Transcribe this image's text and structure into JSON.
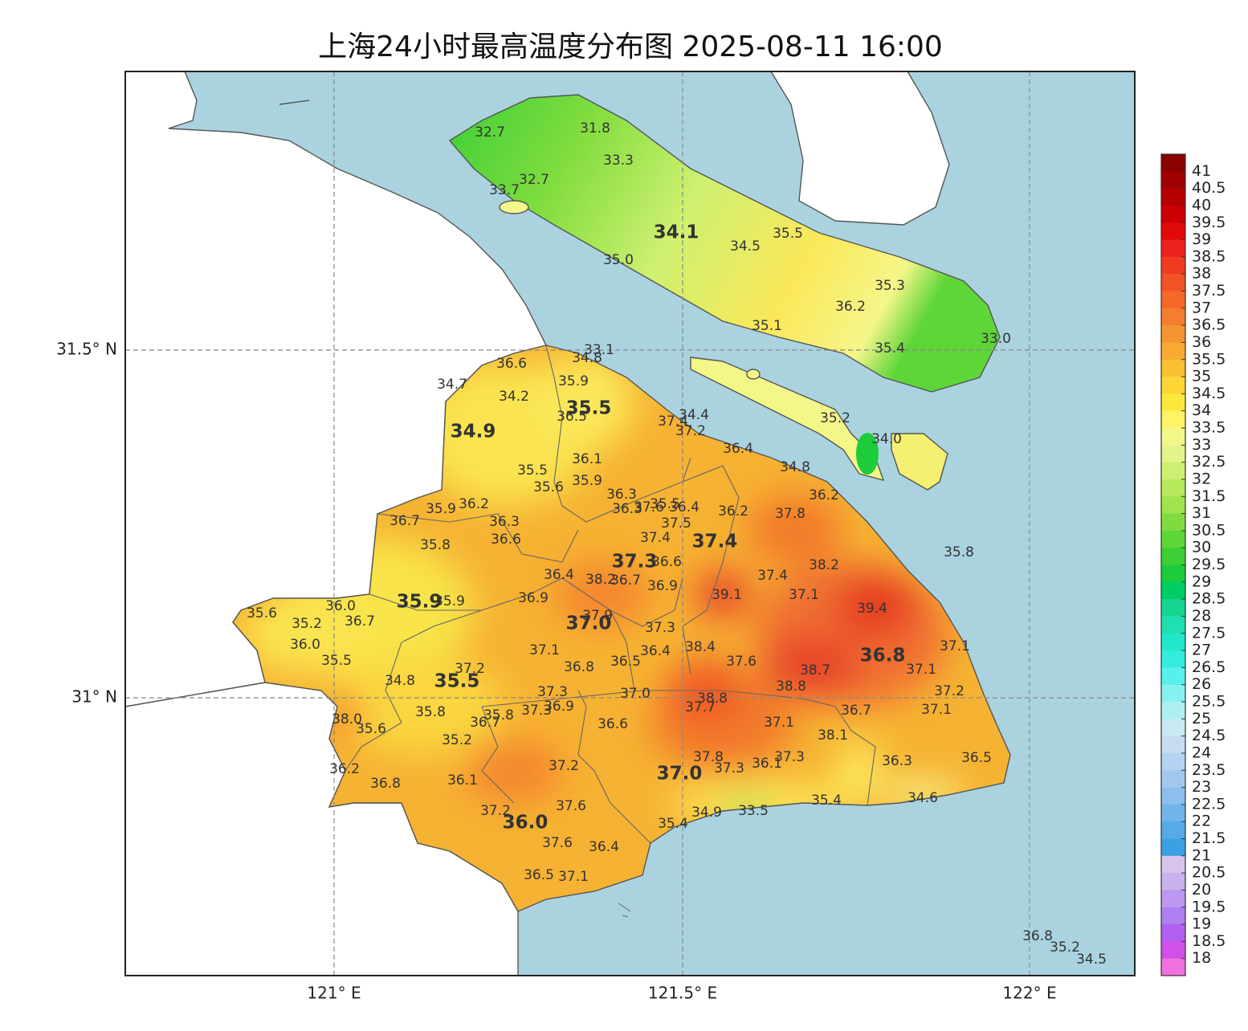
{
  "title": "上海24小时最高温度分布图 2025-08-11 16:00",
  "axes": {
    "y_labels": [
      "31.5° N",
      "31° N"
    ],
    "x_labels": [
      "121° E",
      "121.5° E",
      "122° E"
    ]
  },
  "colorbar": {
    "levels": [
      41,
      40.5,
      40,
      39.5,
      39,
      38.5,
      38,
      37.5,
      37,
      36.5,
      36,
      35.5,
      35,
      34.5,
      34,
      33.5,
      33,
      32.5,
      32,
      31.5,
      31,
      30.5,
      30,
      29.5,
      29,
      28.5,
      28,
      27.5,
      27,
      26.5,
      26,
      25.5,
      25,
      24.5,
      24,
      23.5,
      23,
      22.5,
      22,
      21.5,
      21,
      20.5,
      20,
      19.5,
      19,
      18.5,
      18
    ],
    "colors": [
      "#8b0000",
      "#a00000",
      "#b60000",
      "#cc0000",
      "#e00a0a",
      "#ee2020",
      "#f03a22",
      "#f25226",
      "#f4682a",
      "#f57e2e",
      "#f69432",
      "#f8aa32",
      "#f9c032",
      "#fbd634",
      "#fce83c",
      "#fdf466",
      "#f4f68a",
      "#e2f48a",
      "#cef070",
      "#b8ea5c",
      "#9ee44a",
      "#80dc3e",
      "#5ed638",
      "#3cd036",
      "#1ccc3a",
      "#00cc66",
      "#14d690",
      "#1ee0b0",
      "#22e6c8",
      "#34ecdc",
      "#58f0ea",
      "#86f2f0",
      "#aef0f2",
      "#cae8f2",
      "#c6dcf2",
      "#b6d2f2",
      "#a2c8f0",
      "#8cbeee",
      "#72b4ea",
      "#56aae6",
      "#3aa2e2",
      "#d8c4ea",
      "#cab0ee",
      "#bc98f0",
      "#ae80f2",
      "#b060f0",
      "#d050e8",
      "#f070e0"
    ]
  },
  "stations": [
    "32.7",
    "31.8",
    "33.3",
    "32.7",
    "33.7",
    "34.5",
    "35.5",
    "35.0",
    "35.3",
    "36.2",
    "35.1",
    "35.4",
    "33.0",
    "35.2",
    "34.0",
    "34.8",
    "33.1",
    "34.8",
    "36.6",
    "34.7",
    "35.9",
    "34.2",
    "36.5",
    "37.4",
    "34.4",
    "37.2",
    "36.4",
    "36.1",
    "35.5",
    "35.6",
    "35.9",
    "36.3",
    "36.2",
    "35.9",
    "36.2",
    "36.7",
    "36.3",
    "36.3",
    "37.6",
    "35.5",
    "36.4",
    "36.2",
    "37.8",
    "37.5",
    "37.4",
    "36.6",
    "35.8",
    "36.6",
    "38.2",
    "36.4",
    "38.2",
    "36.7",
    "37.4",
    "39.1",
    "37.1",
    "36.9",
    "36.9",
    "35.9",
    "36.0",
    "39.4",
    "35.6",
    "35.2",
    "36.7",
    "37.9",
    "37.3",
    "36.0",
    "37.1",
    "36.4",
    "38.4",
    "37.1",
    "35.5",
    "37.6",
    "36.5",
    "38.7",
    "37.1",
    "37.2",
    "36.8",
    "34.8",
    "38.8",
    "37.2",
    "37.3",
    "37.0",
    "38.8",
    "37.3",
    "36.9",
    "37.7",
    "36.7",
    "37.1",
    "35.8",
    "35.8",
    "36.7",
    "38.0",
    "35.6",
    "36.6",
    "37.1",
    "38.1",
    "35.2",
    "36.3",
    "36.5",
    "37.8",
    "37.3",
    "36.1",
    "37.3",
    "37.2",
    "36.2",
    "36.1",
    "36.8",
    "35.4",
    "34.6",
    "37.6",
    "37.2",
    "34.9",
    "33.5",
    "35.4",
    "37.6",
    "36.4",
    "36.5",
    "37.1",
    "35.8",
    "36.8",
    "35.2",
    "34.5"
  ],
  "district_values": [
    "34.1",
    "35.5",
    "34.9",
    "37.4",
    "37.3",
    "35.9",
    "37.0",
    "36.8",
    "35.5",
    "37.0",
    "36.0"
  ]
}
